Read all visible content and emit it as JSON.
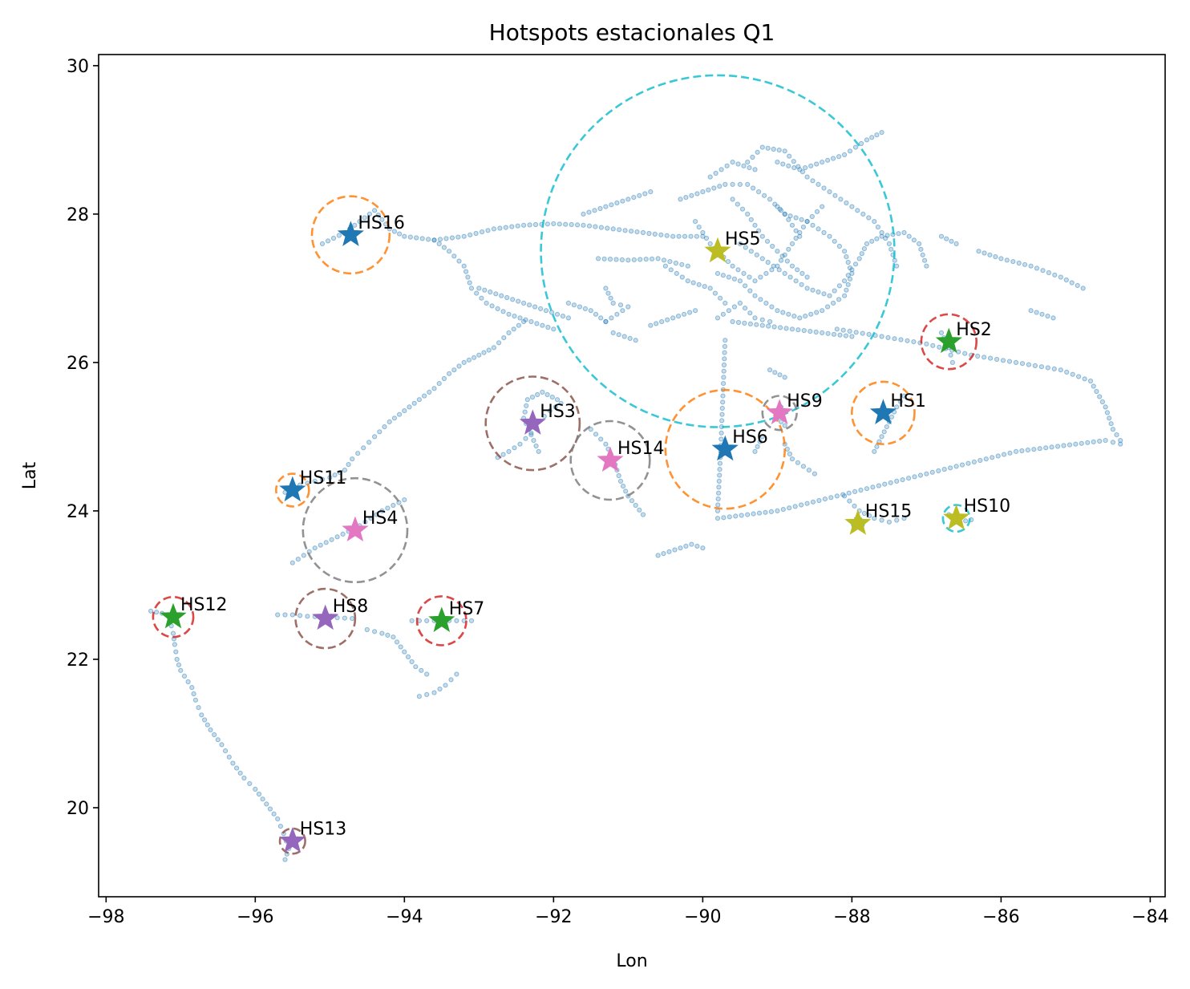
{
  "chart_data": {
    "type": "scatter",
    "title": "Hotspots estacionales Q1",
    "xlabel": "Lon",
    "ylabel": "Lat",
    "xlim": [
      -98.1,
      -83.8
    ],
    "ylim": [
      18.8,
      30.15
    ],
    "xticks": [
      -98,
      -96,
      -94,
      -92,
      -90,
      -88,
      -86,
      -84
    ],
    "xtick_labels": [
      "−98",
      "−96",
      "−94",
      "−92",
      "−90",
      "−88",
      "−86",
      "−84"
    ],
    "yticks": [
      20,
      22,
      24,
      26,
      28,
      30
    ],
    "ytick_labels": [
      "20",
      "22",
      "24",
      "26",
      "28",
      "30"
    ],
    "grid": false,
    "track_point_color": "#1f77b4",
    "tracks": [
      [
        [
          -97.4,
          22.65
        ],
        [
          -97.25,
          22.62
        ],
        [
          -97.15,
          22.55
        ],
        [
          -97.1,
          22.35
        ],
        [
          -97.08,
          22.2
        ],
        [
          -97.05,
          22.0
        ],
        [
          -97.0,
          21.85
        ],
        [
          -96.85,
          21.62
        ],
        [
          -96.8,
          21.45
        ],
        [
          -96.72,
          21.25
        ],
        [
          -96.6,
          21.05
        ],
        [
          -96.45,
          20.85
        ],
        [
          -96.3,
          20.6
        ],
        [
          -96.15,
          20.4
        ],
        [
          -96.0,
          20.25
        ],
        [
          -95.85,
          20.05
        ],
        [
          -95.7,
          19.85
        ],
        [
          -95.62,
          19.65
        ],
        [
          -95.55,
          19.45
        ],
        [
          -95.6,
          19.3
        ]
      ],
      [
        [
          -95.7,
          22.6
        ],
        [
          -95.5,
          22.6
        ],
        [
          -95.3,
          22.58
        ],
        [
          -95.1,
          22.57
        ],
        [
          -94.9,
          22.56
        ],
        [
          -94.7,
          22.55
        ]
      ],
      [
        [
          -94.5,
          22.4
        ],
        [
          -94.3,
          22.35
        ],
        [
          -94.15,
          22.3
        ],
        [
          -94.0,
          22.1
        ],
        [
          -93.85,
          21.9
        ],
        [
          -93.7,
          21.8
        ]
      ],
      [
        [
          -93.8,
          21.5
        ],
        [
          -93.6,
          21.55
        ],
        [
          -93.45,
          21.65
        ],
        [
          -93.3,
          21.8
        ]
      ],
      [
        [
          -93.9,
          22.52
        ],
        [
          -93.7,
          22.52
        ],
        [
          -93.5,
          22.52
        ],
        [
          -93.3,
          22.52
        ],
        [
          -93.1,
          22.52
        ]
      ],
      [
        [
          -95.5,
          23.3
        ],
        [
          -95.2,
          23.5
        ],
        [
          -94.9,
          23.65
        ],
        [
          -94.6,
          23.8
        ],
        [
          -94.3,
          24.0
        ],
        [
          -94.0,
          24.15
        ]
      ],
      [
        [
          -95.6,
          24.25
        ],
        [
          -95.4,
          24.35
        ],
        [
          -95.2,
          24.4
        ],
        [
          -95.0,
          24.45
        ],
        [
          -94.8,
          24.55
        ],
        [
          -94.7,
          24.7
        ],
        [
          -94.55,
          24.85
        ],
        [
          -94.4,
          25.0
        ],
        [
          -94.2,
          25.2
        ],
        [
          -94.0,
          25.35
        ],
        [
          -93.8,
          25.5
        ],
        [
          -93.6,
          25.65
        ],
        [
          -93.4,
          25.85
        ],
        [
          -93.2,
          26.0
        ],
        [
          -93.0,
          26.1
        ],
        [
          -92.8,
          26.2
        ],
        [
          -92.6,
          26.4
        ],
        [
          -92.4,
          26.55
        ]
      ],
      [
        [
          -92.75,
          24.72
        ],
        [
          -92.6,
          24.8
        ],
        [
          -92.45,
          24.9
        ],
        [
          -92.3,
          25.05
        ],
        [
          -92.2,
          25.2
        ],
        [
          -92.05,
          25.35
        ],
        [
          -91.9,
          25.45
        ]
      ],
      [
        [
          -92.2,
          24.8
        ],
        [
          -92.4,
          25.25
        ],
        [
          -92.35,
          25.5
        ],
        [
          -92.15,
          25.6
        ],
        [
          -91.95,
          25.5
        ]
      ],
      [
        [
          -91.5,
          25.1
        ],
        [
          -91.3,
          24.9
        ],
        [
          -91.2,
          24.7
        ],
        [
          -91.1,
          24.4
        ],
        [
          -91.0,
          24.2
        ],
        [
          -90.8,
          23.95
        ]
      ],
      [
        [
          -90.6,
          23.4
        ],
        [
          -90.45,
          23.45
        ],
        [
          -90.3,
          23.5
        ],
        [
          -90.15,
          23.55
        ],
        [
          -90.0,
          23.5
        ]
      ],
      [
        [
          -89.7,
          26.3
        ],
        [
          -89.72,
          25.8
        ],
        [
          -89.74,
          25.3
        ],
        [
          -89.76,
          24.8
        ],
        [
          -89.78,
          24.4
        ],
        [
          -89.8,
          24.0
        ]
      ],
      [
        [
          -89.8,
          23.9
        ],
        [
          -89.4,
          23.95
        ],
        [
          -89.0,
          24.0
        ],
        [
          -88.6,
          24.1
        ],
        [
          -88.2,
          24.2
        ],
        [
          -87.8,
          24.3
        ],
        [
          -87.4,
          24.4
        ],
        [
          -87.0,
          24.5
        ],
        [
          -86.6,
          24.6
        ],
        [
          -86.2,
          24.7
        ],
        [
          -85.8,
          24.8
        ],
        [
          -85.4,
          24.85
        ],
        [
          -85.0,
          24.9
        ],
        [
          -84.6,
          24.95
        ],
        [
          -84.4,
          24.9
        ]
      ],
      [
        [
          -87.7,
          24.8
        ],
        [
          -87.6,
          25.0
        ],
        [
          -87.5,
          25.2
        ],
        [
          -87.4,
          25.4
        ],
        [
          -87.3,
          25.55
        ]
      ],
      [
        [
          -88.1,
          24.2
        ],
        [
          -87.9,
          24.0
        ],
        [
          -87.7,
          23.9
        ],
        [
          -87.5,
          23.85
        ],
        [
          -87.3,
          23.9
        ]
      ],
      [
        [
          -86.7,
          23.95
        ],
        [
          -86.55,
          23.85
        ],
        [
          -86.4,
          23.88
        ]
      ],
      [
        [
          -88.95,
          25.4
        ],
        [
          -89.0,
          25.25
        ],
        [
          -88.9,
          25.15
        ]
      ],
      [
        [
          -86.8,
          26.4
        ],
        [
          -86.7,
          26.2
        ],
        [
          -86.65,
          26.0
        ]
      ],
      [
        [
          -88.2,
          26.45
        ],
        [
          -87.6,
          26.35
        ],
        [
          -87.0,
          26.25
        ],
        [
          -86.4,
          26.1
        ],
        [
          -85.8,
          26.0
        ],
        [
          -85.2,
          25.9
        ],
        [
          -84.8,
          25.75
        ],
        [
          -84.6,
          25.4
        ],
        [
          -84.5,
          25.1
        ],
        [
          -84.4,
          24.95
        ]
      ],
      [
        [
          -89.6,
          26.55
        ],
        [
          -89.2,
          26.5
        ],
        [
          -88.8,
          26.45
        ],
        [
          -88.4,
          26.4
        ],
        [
          -88.0,
          26.35
        ]
      ],
      [
        [
          -86.3,
          27.5
        ],
        [
          -86.0,
          27.4
        ],
        [
          -85.6,
          27.3
        ],
        [
          -85.2,
          27.15
        ],
        [
          -84.9,
          27.0
        ]
      ],
      [
        [
          -85.6,
          26.7
        ],
        [
          -85.3,
          26.6
        ]
      ],
      [
        [
          -86.8,
          27.7
        ],
        [
          -86.6,
          27.6
        ]
      ],
      [
        [
          -95.1,
          27.6
        ],
        [
          -94.8,
          27.75
        ],
        [
          -94.6,
          27.9
        ],
        [
          -94.4,
          28.05
        ],
        [
          -94.2,
          27.8
        ],
        [
          -94.0,
          27.7
        ],
        [
          -93.6,
          27.65
        ],
        [
          -93.4,
          27.5
        ],
        [
          -93.2,
          27.3
        ],
        [
          -93.1,
          27.0
        ],
        [
          -92.9,
          26.8
        ],
        [
          -92.6,
          26.65
        ],
        [
          -92.3,
          26.55
        ],
        [
          -92.0,
          26.45
        ]
      ],
      [
        [
          -93.6,
          27.65
        ],
        [
          -93.2,
          27.7
        ],
        [
          -92.8,
          27.8
        ],
        [
          -92.4,
          27.85
        ],
        [
          -92.0,
          27.87
        ],
        [
          -91.6,
          27.85
        ],
        [
          -91.2,
          27.8
        ],
        [
          -90.8,
          27.75
        ],
        [
          -90.4,
          27.7
        ],
        [
          -90.0,
          27.7
        ]
      ],
      [
        [
          -93.0,
          27.0
        ],
        [
          -92.7,
          26.9
        ],
        [
          -92.4,
          26.8
        ],
        [
          -92.1,
          26.7
        ],
        [
          -91.8,
          26.6
        ]
      ],
      [
        [
          -91.3,
          27.0
        ],
        [
          -91.2,
          26.8
        ],
        [
          -91.0,
          26.75
        ],
        [
          -91.3,
          26.55
        ]
      ],
      [
        [
          -91.4,
          27.4
        ],
        [
          -91.0,
          27.38
        ],
        [
          -90.6,
          27.4
        ],
        [
          -90.2,
          27.3
        ]
      ],
      [
        [
          -90.3,
          28.2
        ],
        [
          -90.0,
          28.3
        ],
        [
          -89.7,
          28.4
        ],
        [
          -89.4,
          28.4
        ],
        [
          -89.1,
          28.2
        ],
        [
          -88.9,
          28.0
        ],
        [
          -88.6,
          27.9
        ],
        [
          -88.3,
          27.7
        ],
        [
          -88.1,
          27.5
        ],
        [
          -88.0,
          27.2
        ],
        [
          -88.1,
          26.9
        ],
        [
          -88.4,
          26.7
        ],
        [
          -88.7,
          26.6
        ],
        [
          -89.0,
          26.7
        ],
        [
          -89.3,
          26.9
        ],
        [
          -89.5,
          27.1
        ],
        [
          -89.8,
          27.2
        ]
      ],
      [
        [
          -89.0,
          28.7
        ],
        [
          -88.7,
          28.6
        ],
        [
          -88.4,
          28.7
        ],
        [
          -88.1,
          28.8
        ],
        [
          -87.8,
          29.0
        ],
        [
          -87.6,
          29.1
        ]
      ],
      [
        [
          -89.4,
          28.7
        ],
        [
          -89.2,
          28.9
        ],
        [
          -88.9,
          28.85
        ],
        [
          -88.6,
          28.5
        ],
        [
          -88.3,
          28.3
        ],
        [
          -88.0,
          28.1
        ],
        [
          -87.7,
          27.9
        ],
        [
          -87.5,
          27.6
        ],
        [
          -87.4,
          27.3
        ]
      ],
      [
        [
          -89.5,
          27.6
        ],
        [
          -89.2,
          27.4
        ],
        [
          -88.9,
          27.2
        ],
        [
          -88.6,
          27.0
        ],
        [
          -88.3,
          26.9
        ],
        [
          -88.1,
          27.1
        ],
        [
          -87.9,
          27.4
        ],
        [
          -87.8,
          27.6
        ],
        [
          -87.6,
          27.7
        ],
        [
          -87.3,
          27.75
        ],
        [
          -87.1,
          27.6
        ],
        [
          -87.0,
          27.3
        ]
      ],
      [
        [
          -90.1,
          27.9
        ],
        [
          -89.9,
          27.6
        ],
        [
          -89.6,
          27.3
        ],
        [
          -89.3,
          27.1
        ],
        [
          -89.0,
          27.3
        ],
        [
          -88.8,
          27.6
        ],
        [
          -88.6,
          27.9
        ],
        [
          -88.4,
          28.1
        ]
      ],
      [
        [
          -89.6,
          28.2
        ],
        [
          -89.4,
          28.0
        ],
        [
          -89.2,
          27.7
        ],
        [
          -89.0,
          27.5
        ],
        [
          -88.8,
          27.3
        ],
        [
          -88.6,
          27.15
        ]
      ],
      [
        [
          -89.8,
          26.6
        ],
        [
          -89.5,
          26.8
        ],
        [
          -89.3,
          26.6
        ],
        [
          -89.1,
          26.55
        ]
      ],
      [
        [
          -90.5,
          27.3
        ],
        [
          -90.2,
          27.1
        ],
        [
          -89.9,
          27.0
        ],
        [
          -89.7,
          26.8
        ]
      ],
      [
        [
          -91.6,
          28.0
        ],
        [
          -91.3,
          28.1
        ],
        [
          -91.0,
          28.2
        ],
        [
          -90.7,
          28.3
        ]
      ],
      [
        [
          -89.9,
          28.5
        ],
        [
          -89.6,
          28.7
        ],
        [
          -89.3,
          28.6
        ]
      ],
      [
        [
          -91.8,
          26.8
        ],
        [
          -91.5,
          26.7
        ],
        [
          -91.3,
          26.55
        ]
      ],
      [
        [
          -91.2,
          26.4
        ],
        [
          -90.9,
          26.3
        ]
      ],
      [
        [
          -90.7,
          26.5
        ],
        [
          -90.4,
          26.6
        ],
        [
          -90.1,
          26.7
        ]
      ],
      [
        [
          -89.1,
          25.9
        ],
        [
          -88.9,
          25.8
        ]
      ],
      [
        [
          -88.9,
          24.9
        ],
        [
          -88.8,
          24.7
        ],
        [
          -88.5,
          24.5
        ]
      ],
      [
        [
          -89.3,
          24.8
        ],
        [
          -89.2,
          25.0
        ]
      ],
      [
        [
          -89.0,
          28.1
        ],
        [
          -88.9,
          28.0
        ],
        [
          -88.8,
          27.85
        ],
        [
          -88.7,
          27.7
        ]
      ]
    ],
    "hotspots": [
      {
        "name": "HS1",
        "lon": -87.58,
        "lat": 25.32,
        "color": "#1f77b4",
        "radius_lon": 0.42,
        "circle_color": "#ff7f0e"
      },
      {
        "name": "HS2",
        "lon": -86.7,
        "lat": 26.28,
        "color": "#2ca02c",
        "radius_lon": 0.37,
        "circle_color": "#d62728"
      },
      {
        "name": "HS3",
        "lon": -92.28,
        "lat": 25.18,
        "color": "#9467bd",
        "radius_lon": 0.63,
        "circle_color": "#8c564b"
      },
      {
        "name": "HS4",
        "lon": -94.66,
        "lat": 23.74,
        "color": "#e377c2",
        "radius_lon": 0.7,
        "circle_color": "#7f7f7f"
      },
      {
        "name": "HS5",
        "lon": -89.8,
        "lat": 27.5,
        "color": "#bcbd22",
        "radius_lon": 2.37,
        "circle_color": "#17becf"
      },
      {
        "name": "HS6",
        "lon": -89.7,
        "lat": 24.83,
        "color": "#1f77b4",
        "radius_lon": 0.8,
        "circle_color": "#ff7f0e"
      },
      {
        "name": "HS7",
        "lon": -93.5,
        "lat": 22.52,
        "color": "#2ca02c",
        "radius_lon": 0.33,
        "circle_color": "#d62728"
      },
      {
        "name": "HS8",
        "lon": -95.06,
        "lat": 22.55,
        "color": "#9467bd",
        "radius_lon": 0.4,
        "circle_color": "#8c564b"
      },
      {
        "name": "HS9",
        "lon": -88.97,
        "lat": 25.32,
        "color": "#e377c2",
        "radius_lon": 0.23,
        "circle_color": "#7f7f7f"
      },
      {
        "name": "HS10",
        "lon": -86.6,
        "lat": 23.9,
        "color": "#bcbd22",
        "radius_lon": 0.18,
        "circle_color": "#17becf"
      },
      {
        "name": "HS11",
        "lon": -95.5,
        "lat": 24.28,
        "color": "#1f77b4",
        "radius_lon": 0.22,
        "circle_color": "#ff7f0e"
      },
      {
        "name": "HS12",
        "lon": -97.1,
        "lat": 22.57,
        "color": "#2ca02c",
        "radius_lon": 0.27,
        "circle_color": "#d62728"
      },
      {
        "name": "HS13",
        "lon": -95.5,
        "lat": 19.55,
        "color": "#9467bd",
        "radius_lon": 0.17,
        "circle_color": "#8c564b"
      },
      {
        "name": "HS14",
        "lon": -91.24,
        "lat": 24.68,
        "color": "#e377c2",
        "radius_lon": 0.53,
        "circle_color": "#7f7f7f"
      },
      {
        "name": "HS15",
        "lon": -87.92,
        "lat": 23.83,
        "color": "#bcbd22",
        "radius_lon": 0.08,
        "circle_color": "#17becf"
      },
      {
        "name": "HS16",
        "lon": -94.72,
        "lat": 27.72,
        "color": "#1f77b4",
        "radius_lon": 0.52,
        "circle_color": "#ff7f0e"
      }
    ]
  }
}
